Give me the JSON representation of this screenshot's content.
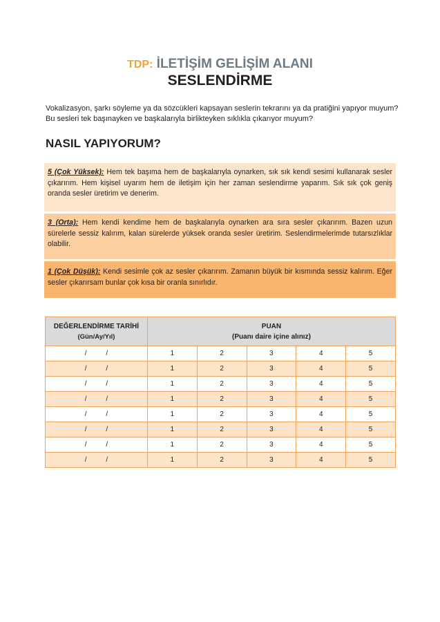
{
  "header": {
    "prefix": "TDP:",
    "area": "İLETİŞİM GELİŞİM ALANI",
    "subtitle": "SESLENDİRME"
  },
  "intro": "Vokalizasyon, şarkı söyleme ya da sözcükleri kapsayan seslerin tekrarını ya da pratiğini yapıyor muyum? Bu sesleri tek başınayken ve başkalarıyla birlikteyken sıklıkla çıkarıyor muyum?",
  "section_title": "NASIL YAPIYORUM?",
  "levels": [
    {
      "label": "5 (Çok Yüksek):",
      "text": " Hem tek başıma hem de başkalarıyla oynarken, sık sık kendi sesimi kullanarak sesler çıkarırım. Hem kişisel uyarım hem de iletişim için her zaman seslendirme yaparım. Sık sık çok geniş oranda sesler üretirim ve denerim.",
      "color": "#fde5cc"
    },
    {
      "label": "3 (Orta):",
      "text": " Hem kendi kendime hem de başkalarıyla oynarken ara sıra sesler çıkarırım. Bazen uzun sürelerle sessiz kalırım, kalan sürelerde yüksek oranda sesler üretirim. Seslendirmelerimde tutarsızlıklar olabilir.",
      "color": "#fbcf9f"
    },
    {
      "label": "1 (Çok Düşük):",
      "text": " Kendi sesimle çok az sesler çıkarırım. Zamanın büyük bir kısmında sessiz kalırım. Eğer sesler çıkarırsam bunlar çok kısa bir oranla sınırlıdır.",
      "color": "#f9b46e"
    }
  ],
  "table": {
    "date_header": "DEĞERLENDİRME TARİHİ",
    "date_sub": "(Gün/Ay/Yıl)",
    "score_header": "PUAN",
    "score_sub": "(Puanı daire içine alınız)",
    "date_placeholder": "/          /",
    "scores": [
      "1",
      "2",
      "3",
      "4",
      "5"
    ],
    "row_count": 8
  }
}
